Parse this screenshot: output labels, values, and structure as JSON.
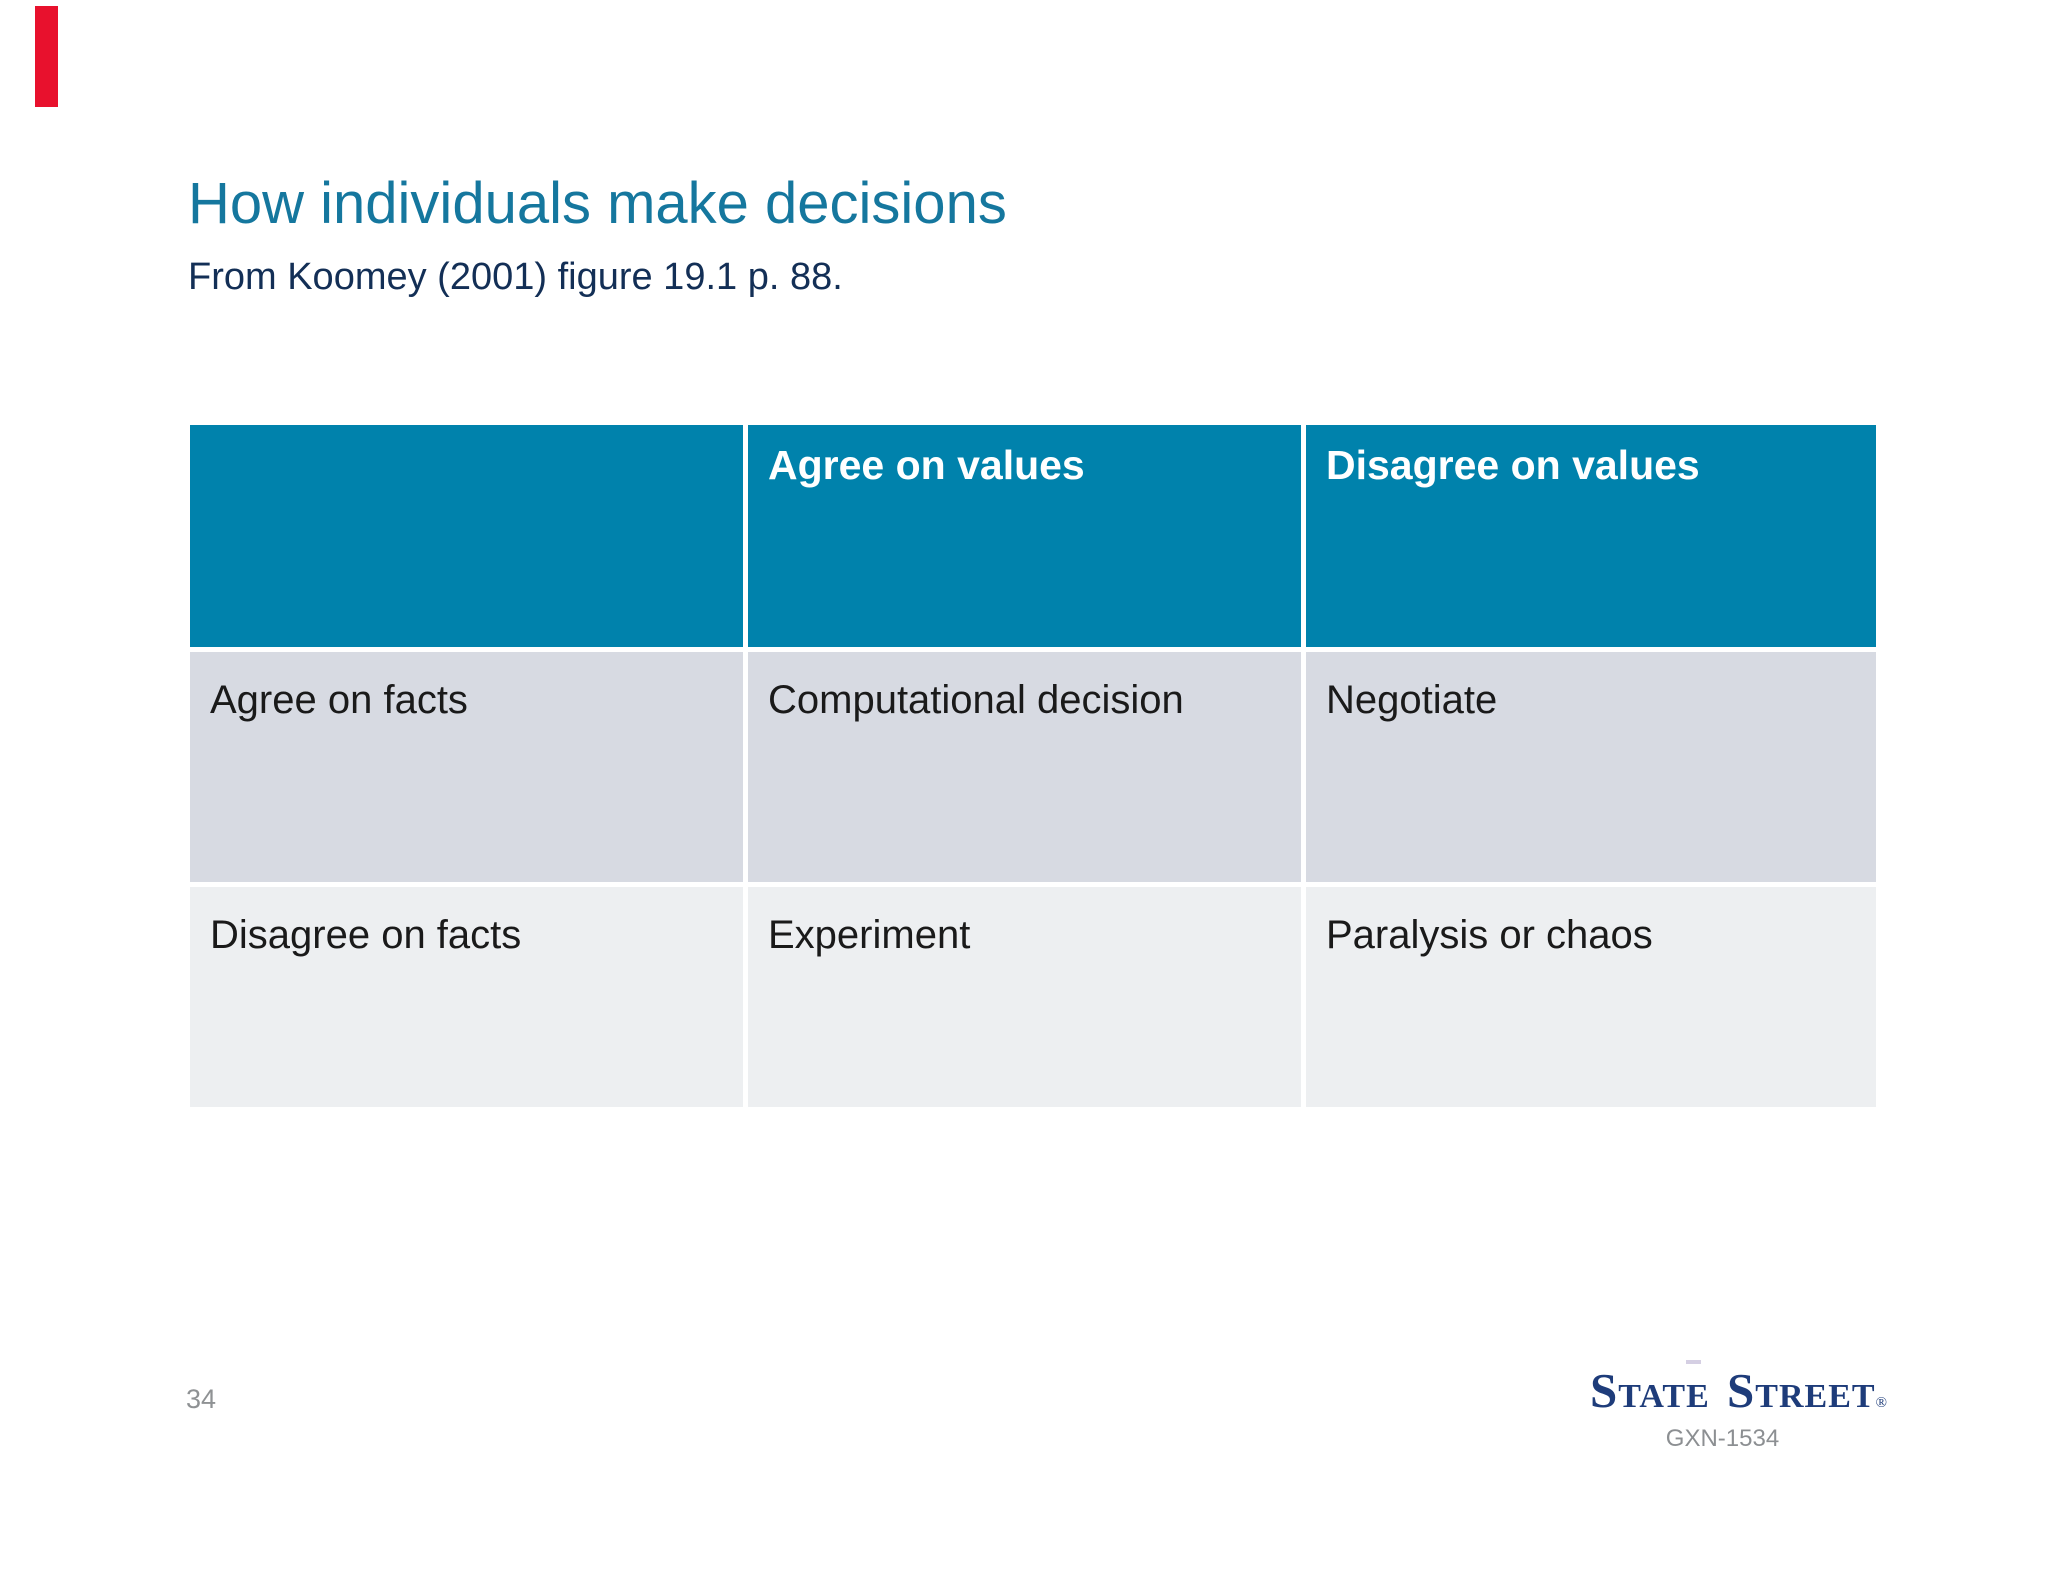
{
  "slide": {
    "title": "How individuals make decisions",
    "subtitle": "From Koomey (2001) figure 19.1 p. 88.",
    "page_number": "34"
  },
  "table": {
    "columns": [
      "",
      "Agree on values",
      "Disagree on values"
    ],
    "rows": [
      {
        "header": "Agree on facts",
        "cells": [
          "Computational decision",
          "Negotiate"
        ]
      },
      {
        "header": "Disagree on facts",
        "cells": [
          "Experiment",
          "Paralysis or chaos"
        ]
      }
    ]
  },
  "footer": {
    "logo_text": "State Street",
    "registered_mark": "®",
    "code": "GXN-1534"
  },
  "colors": {
    "title_teal": "#15779e",
    "subtitle_navy": "#132f56",
    "table_header_fill": "#0082ac",
    "table_row1_fill": "#d7dae2",
    "table_row2_fill": "#edeff1",
    "logo_navy": "#1e3c7a",
    "accent_red": "#e8112d",
    "muted_gray": "#8f9294"
  }
}
